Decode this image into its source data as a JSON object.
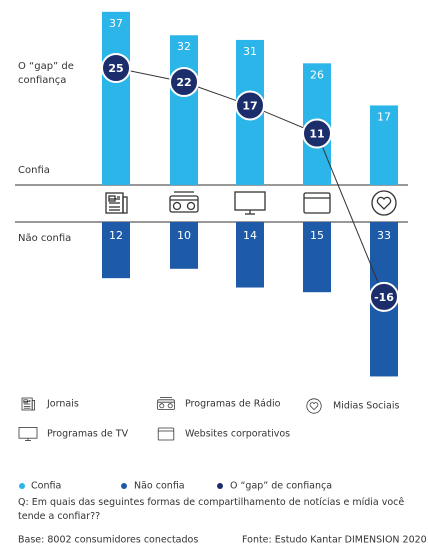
{
  "chart_data": {
    "type": "diverging_bar",
    "annotations": {
      "gap": "O “gap” de confiança",
      "up": "Confia",
      "down": "Não confia"
    },
    "categories": [
      "Jornais",
      "Programas de Rádio",
      "Programas de TV",
      "Websites corporativos",
      "Midias Sociais"
    ],
    "series": [
      {
        "name": "Confia",
        "color": "#2cb5e8",
        "values": [
          37,
          32,
          31,
          26,
          17
        ]
      },
      {
        "name": "Não confia",
        "color": "#1d5ba8",
        "values": [
          12,
          10,
          14,
          15,
          33
        ]
      },
      {
        "name": "O “gap” de confiança",
        "color": "#1c2d6b",
        "values": [
          25,
          22,
          17,
          11,
          -16
        ]
      }
    ],
    "question": "Q: Em quais das seguintes formas de compartilhamento de notícias e mídia você tende a confiar??",
    "base": "Base: 8002 consumidores conectados",
    "source": "Fonte: Estudo Kantar DIMENSION 2020"
  }
}
